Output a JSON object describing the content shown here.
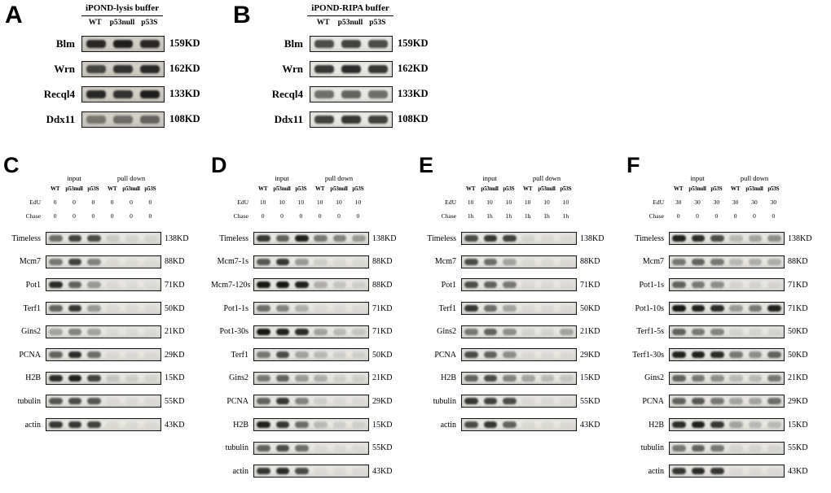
{
  "figure": {
    "background": "#ffffff",
    "band_color": "#0b0b0b",
    "strip_border_color": "#161616"
  },
  "panels_top": [
    {
      "letter": "A",
      "title": "iPOND-lysis buffer",
      "lanes": [
        "WT",
        "p53null",
        "p53S"
      ],
      "rows": [
        {
          "label": "Blm",
          "kd": "159KD",
          "bands": [
            0.85,
            0.9,
            0.85
          ]
        },
        {
          "label": "Wrn",
          "kd": "162KD",
          "bands": [
            0.7,
            0.8,
            0.85
          ]
        },
        {
          "label": "Recql4",
          "kd": "133KD",
          "bands": [
            0.85,
            0.8,
            0.9
          ]
        },
        {
          "label": "Ddx11",
          "kd": "108KD",
          "bands": [
            0.45,
            0.5,
            0.55
          ]
        }
      ]
    },
    {
      "letter": "B",
      "title": "iPOND-RIPA buffer",
      "lanes": [
        "WT",
        "p53null",
        "p53S"
      ],
      "rows": [
        {
          "label": "Blm",
          "kd": "159KD",
          "bands": [
            0.7,
            0.75,
            0.7
          ]
        },
        {
          "label": "Wrn",
          "kd": "162KD",
          "bands": [
            0.8,
            0.85,
            0.8
          ]
        },
        {
          "label": "Recql4",
          "kd": "133KD",
          "bands": [
            0.55,
            0.6,
            0.55
          ]
        },
        {
          "label": "Ddx11",
          "kd": "108KD",
          "bands": [
            0.75,
            0.8,
            0.75
          ]
        }
      ]
    }
  ],
  "panels_bottom": [
    {
      "letter": "C",
      "groups": [
        "input",
        "pull down"
      ],
      "lanes": [
        "WT",
        "p53null",
        "p53S",
        "WT",
        "p53null",
        "p53S"
      ],
      "conditions": [
        {
          "label": "EdU",
          "values": [
            "0",
            "0",
            "0",
            "0",
            "0",
            "0"
          ]
        },
        {
          "label": "Chase",
          "values": [
            "0",
            "0",
            "0",
            "0",
            "0",
            "0"
          ]
        }
      ],
      "rows": [
        {
          "label": "Timeless",
          "kd": "138KD",
          "bands": [
            0.55,
            0.75,
            0.7,
            0.12,
            0.08,
            0.08
          ]
        },
        {
          "label": "Mcm7",
          "kd": "88KD",
          "bands": [
            0.5,
            0.75,
            0.45,
            0.05,
            0.04,
            0.04
          ]
        },
        {
          "label": "Pot1",
          "kd": "71KD",
          "bands": [
            0.85,
            0.6,
            0.35,
            0.05,
            0.04,
            0.04
          ]
        },
        {
          "label": "Terf1",
          "kd": "50KD",
          "bands": [
            0.6,
            0.8,
            0.35,
            0.05,
            0.05,
            0.05
          ]
        },
        {
          "label": "Gins2",
          "kd": "21KD",
          "bands": [
            0.3,
            0.45,
            0.3,
            0.05,
            0.05,
            0.05
          ]
        },
        {
          "label": "PCNA",
          "kd": "29KD",
          "bands": [
            0.6,
            0.85,
            0.55,
            0.05,
            0.05,
            0.05
          ]
        },
        {
          "label": "H2B",
          "kd": "15KD",
          "bands": [
            0.85,
            0.9,
            0.75,
            0.15,
            0.1,
            0.08
          ]
        },
        {
          "label": "tubulin",
          "kd": "55KD",
          "bands": [
            0.65,
            0.7,
            0.65,
            0.05,
            0.05,
            0.05
          ]
        },
        {
          "label": "actin",
          "kd": "43KD",
          "bands": [
            0.8,
            0.8,
            0.75,
            0.05,
            0.05,
            0.05
          ]
        }
      ]
    },
    {
      "letter": "D",
      "groups": [
        "input",
        "pull down"
      ],
      "lanes": [
        "WT",
        "p53null",
        "p53S",
        "WT",
        "p53null",
        "p53S"
      ],
      "conditions": [
        {
          "label": "EdU",
          "values": [
            "10",
            "10",
            "10",
            "10",
            "10",
            "10"
          ]
        },
        {
          "label": "Chase",
          "values": [
            "0",
            "0",
            "0",
            "0",
            "0",
            "0"
          ]
        }
      ],
      "rows": [
        {
          "label": "Timeless",
          "kd": "138KD",
          "bands": [
            0.8,
            0.6,
            0.9,
            0.5,
            0.45,
            0.35
          ]
        },
        {
          "label": "Mcm7-1s",
          "kd": "88KD",
          "bands": [
            0.65,
            0.8,
            0.35,
            0.1,
            0.05,
            0.05
          ]
        },
        {
          "label": "Mcm7-120s",
          "kd": "88KD",
          "bands": [
            0.95,
            0.95,
            0.9,
            0.25,
            0.15,
            0.1
          ]
        },
        {
          "label": "Pot1-1s",
          "kd": "71KD",
          "bands": [
            0.55,
            0.45,
            0.25,
            0.05,
            0.05,
            0.05
          ]
        },
        {
          "label": "Pot1-30s",
          "kd": "71KD",
          "bands": [
            0.95,
            0.9,
            0.85,
            0.3,
            0.2,
            0.15
          ]
        },
        {
          "label": "Terf1",
          "kd": "50KD",
          "bands": [
            0.5,
            0.7,
            0.3,
            0.2,
            0.1,
            0.1
          ]
        },
        {
          "label": "Gins2",
          "kd": "21KD",
          "bands": [
            0.5,
            0.6,
            0.35,
            0.25,
            0.1,
            0.1
          ]
        },
        {
          "label": "PCNA",
          "kd": "29KD",
          "bands": [
            0.6,
            0.8,
            0.45,
            0.1,
            0.05,
            0.05
          ]
        },
        {
          "label": "H2B",
          "kd": "15KD",
          "bands": [
            0.9,
            0.8,
            0.55,
            0.2,
            0.1,
            0.1
          ]
        },
        {
          "label": "tubulin",
          "kd": "55KD",
          "bands": [
            0.6,
            0.7,
            0.55,
            0.05,
            0.05,
            0.05
          ]
        },
        {
          "label": "actin",
          "kd": "43KD",
          "bands": [
            0.8,
            0.85,
            0.7,
            0.05,
            0.05,
            0.05
          ]
        }
      ]
    },
    {
      "letter": "E",
      "groups": [
        "input",
        "pull down"
      ],
      "lanes": [
        "WT",
        "p53null",
        "p53S",
        "WT",
        "p53null",
        "p53S"
      ],
      "conditions": [
        {
          "label": "EdU",
          "values": [
            "10",
            "10",
            "10",
            "10",
            "10",
            "10"
          ]
        },
        {
          "label": "Chase",
          "values": [
            "1h",
            "1h",
            "1h",
            "1h",
            "1h",
            "1h"
          ]
        }
      ],
      "rows": [
        {
          "label": "Timeless",
          "kd": "138KD",
          "bands": [
            0.7,
            0.8,
            0.75,
            0.08,
            0.05,
            0.05
          ]
        },
        {
          "label": "Mcm7",
          "kd": "88KD",
          "bands": [
            0.7,
            0.55,
            0.3,
            0.05,
            0.05,
            0.05
          ]
        },
        {
          "label": "Pot1",
          "kd": "71KD",
          "bands": [
            0.7,
            0.6,
            0.5,
            0.05,
            0.05,
            0.05
          ]
        },
        {
          "label": "Terf1",
          "kd": "50KD",
          "bands": [
            0.8,
            0.55,
            0.3,
            0.05,
            0.05,
            0.05
          ]
        },
        {
          "label": "Gins2",
          "kd": "21KD",
          "bands": [
            0.5,
            0.6,
            0.4,
            0.08,
            0.08,
            0.3
          ]
        },
        {
          "label": "PCNA",
          "kd": "29KD",
          "bands": [
            0.7,
            0.6,
            0.4,
            0.05,
            0.05,
            0.05
          ]
        },
        {
          "label": "H2B",
          "kd": "15KD",
          "bands": [
            0.6,
            0.7,
            0.45,
            0.3,
            0.2,
            0.15
          ]
        },
        {
          "label": "tubulin",
          "kd": "55KD",
          "bands": [
            0.8,
            0.75,
            0.7,
            0.05,
            0.05,
            0.05
          ]
        },
        {
          "label": "actin",
          "kd": "43KD",
          "bands": [
            0.7,
            0.8,
            0.6,
            0.05,
            0.05,
            0.05
          ]
        }
      ]
    },
    {
      "letter": "F",
      "groups": [
        "input",
        "pull down"
      ],
      "lanes": [
        "WT",
        "p53null",
        "p53S",
        "WT",
        "p53null",
        "p53S"
      ],
      "conditions": [
        {
          "label": "EdU",
          "values": [
            "30",
            "30",
            "30",
            "30",
            "30",
            "30"
          ]
        },
        {
          "label": "Chase",
          "values": [
            "0",
            "0",
            "0",
            "0",
            "0",
            "0"
          ]
        }
      ],
      "rows": [
        {
          "label": "Timeless",
          "kd": "138KD",
          "bands": [
            0.9,
            0.85,
            0.7,
            0.2,
            0.3,
            0.4
          ]
        },
        {
          "label": "Mcm7",
          "kd": "88KD",
          "bands": [
            0.5,
            0.6,
            0.5,
            0.2,
            0.25,
            0.25
          ]
        },
        {
          "label": "Pot1-1s",
          "kd": "71KD",
          "bands": [
            0.6,
            0.5,
            0.4,
            0.08,
            0.08,
            0.08
          ]
        },
        {
          "label": "Pot1-10s",
          "kd": "71KD",
          "bands": [
            0.95,
            0.9,
            0.85,
            0.35,
            0.5,
            0.9
          ]
        },
        {
          "label": "Terf1-5s",
          "kd": "50KD",
          "bands": [
            0.6,
            0.5,
            0.45,
            0.08,
            0.08,
            0.08
          ]
        },
        {
          "label": "Terf1-30s",
          "kd": "50KD",
          "bands": [
            0.9,
            0.9,
            0.85,
            0.5,
            0.4,
            0.6
          ]
        },
        {
          "label": "Gins2",
          "kd": "21KD",
          "bands": [
            0.6,
            0.5,
            0.4,
            0.2,
            0.2,
            0.5
          ]
        },
        {
          "label": "PCNA",
          "kd": "29KD",
          "bands": [
            0.6,
            0.65,
            0.5,
            0.3,
            0.3,
            0.55
          ]
        },
        {
          "label": "H2B",
          "kd": "15KD",
          "bands": [
            0.85,
            0.9,
            0.8,
            0.3,
            0.2,
            0.2
          ]
        },
        {
          "label": "tubulin",
          "kd": "55KD",
          "bands": [
            0.5,
            0.6,
            0.5,
            0.08,
            0.08,
            0.08
          ]
        },
        {
          "label": "actin",
          "kd": "43KD",
          "bands": [
            0.8,
            0.85,
            0.8,
            0.05,
            0.05,
            0.05
          ]
        }
      ]
    }
  ]
}
